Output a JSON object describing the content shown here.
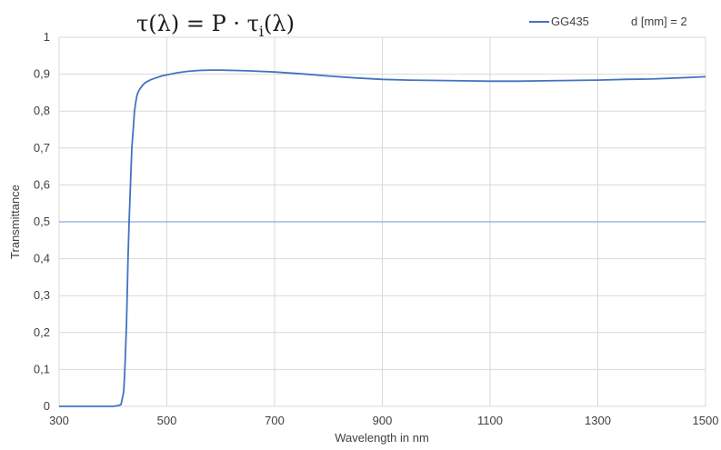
{
  "chart_data": {
    "type": "line",
    "title_formula": {
      "lhs": "τ(λ) = P · τ",
      "sub": "i",
      "rhs": "(λ)"
    },
    "xlabel": "Wavelength in nm",
    "ylabel": "Transmittance",
    "xlim": [
      300,
      1500
    ],
    "ylim": [
      0,
      1
    ],
    "x_ticks": [
      "300",
      "500",
      "700",
      "900",
      "1100",
      "1300",
      "1500"
    ],
    "y_ticks": [
      "0",
      "0,1",
      "0,2",
      "0,3",
      "0,4",
      "0,5",
      "0,6",
      "0,7",
      "0,8",
      "0,9",
      "1"
    ],
    "reference_line_y": 0.5,
    "grid": true,
    "legend_position": "top-right",
    "legend_annotation": "d [mm]  = 2",
    "colors": {
      "series": "#4472c4",
      "grid": "#d9d9d9",
      "reference": "#8ea9db"
    },
    "series": [
      {
        "name": "GG435",
        "x": [
          300,
          400,
          410,
          415,
          420,
          422,
          425,
          428,
          430,
          433,
          435,
          438,
          440,
          443,
          445,
          448,
          450,
          455,
          460,
          470,
          480,
          490,
          500,
          520,
          540,
          560,
          580,
          600,
          650,
          700,
          750,
          800,
          850,
          900,
          950,
          1000,
          1050,
          1100,
          1150,
          1200,
          1250,
          1300,
          1350,
          1400,
          1450,
          1500
        ],
        "y": [
          0,
          0,
          0.002,
          0.005,
          0.04,
          0.1,
          0.22,
          0.4,
          0.5,
          0.62,
          0.7,
          0.76,
          0.8,
          0.83,
          0.845,
          0.855,
          0.86,
          0.87,
          0.877,
          0.885,
          0.89,
          0.895,
          0.898,
          0.904,
          0.908,
          0.91,
          0.911,
          0.911,
          0.909,
          0.906,
          0.901,
          0.895,
          0.89,
          0.886,
          0.884,
          0.883,
          0.882,
          0.881,
          0.881,
          0.882,
          0.883,
          0.884,
          0.886,
          0.887,
          0.89,
          0.893
        ]
      }
    ]
  }
}
